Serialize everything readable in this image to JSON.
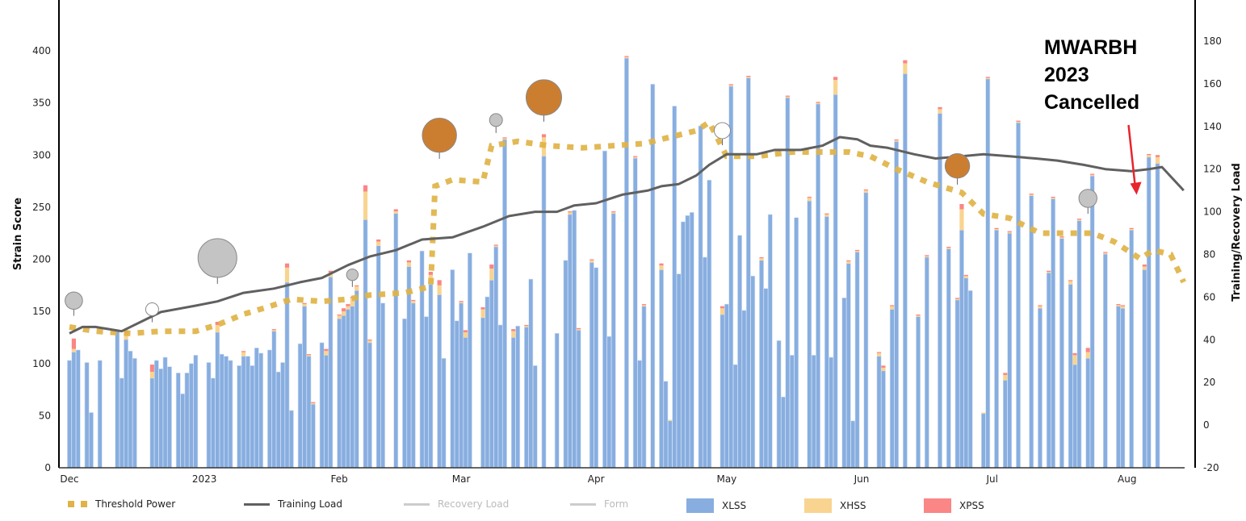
{
  "chart_data": {
    "type": "bar",
    "title": "",
    "x_origin_label": "Dec",
    "x_ticks": [
      {
        "label": "Dec",
        "day": 0
      },
      {
        "label": "2023",
        "day": 31
      },
      {
        "label": "Feb",
        "day": 62
      },
      {
        "label": "Mar",
        "day": 90
      },
      {
        "label": "Apr",
        "day": 121
      },
      {
        "label": "May",
        "day": 151
      },
      {
        "label": "Jun",
        "day": 182
      },
      {
        "label": "Jul",
        "day": 212
      },
      {
        "label": "Aug",
        "day": 243
      }
    ],
    "x_range_days": [
      0,
      256
    ],
    "left_axis": {
      "label": "Strain Score",
      "ylim": [
        0,
        440
      ],
      "ticks": [
        0,
        50,
        100,
        150,
        200,
        250,
        300,
        350,
        400
      ]
    },
    "right_axis": {
      "label": "Training/Recovery Load",
      "ylim": [
        -20,
        180
      ],
      "ticks": [
        -20,
        0,
        20,
        40,
        60,
        80,
        100,
        120,
        140,
        160,
        180
      ]
    },
    "colors": {
      "xlss": "#88aee0",
      "xhss": "#f9d490",
      "xpss": "#fa8686",
      "threshold": "#e0b347",
      "training": "#606060",
      "recovery": "#cccccc",
      "form": "#cccccc",
      "event_gray": "#c4c4c4",
      "event_orange": "#cc7e30",
      "arrow": "#e8242c"
    },
    "legend": [
      {
        "name": "Threshold Power",
        "visible": true
      },
      {
        "name": "Training Load",
        "visible": true
      },
      {
        "name": "Recovery Load",
        "visible": false
      },
      {
        "name": "Form",
        "visible": false
      },
      {
        "name": "XLSS",
        "visible": true
      },
      {
        "name": "XHSS",
        "visible": true
      },
      {
        "name": "XPSS",
        "visible": true
      }
    ],
    "bars_fields": [
      "day",
      "XLSS",
      "XHSS",
      "XPSS"
    ],
    "bars": [
      [
        0,
        103,
        0,
        0
      ],
      [
        1,
        111,
        3,
        10
      ],
      [
        2,
        113,
        0,
        0
      ],
      [
        4,
        101,
        0,
        0
      ],
      [
        5,
        53,
        0,
        0
      ],
      [
        7,
        103,
        0,
        0
      ],
      [
        11,
        131,
        0,
        0
      ],
      [
        12,
        86,
        0,
        0
      ],
      [
        13,
        123,
        6,
        3
      ],
      [
        14,
        112,
        0,
        0
      ],
      [
        15,
        105,
        0,
        0
      ],
      [
        19,
        86,
        6,
        7
      ],
      [
        20,
        103,
        0,
        0
      ],
      [
        21,
        95,
        0,
        0
      ],
      [
        22,
        106,
        0,
        0
      ],
      [
        23,
        97,
        0,
        0
      ],
      [
        25,
        91,
        0,
        0
      ],
      [
        26,
        71,
        0,
        0
      ],
      [
        27,
        91,
        0,
        0
      ],
      [
        28,
        100,
        0,
        0
      ],
      [
        29,
        108,
        0,
        0
      ],
      [
        32,
        101,
        0,
        0
      ],
      [
        33,
        86,
        0,
        0
      ],
      [
        34,
        130,
        7,
        3
      ],
      [
        35,
        109,
        0,
        0
      ],
      [
        36,
        107,
        0,
        0
      ],
      [
        37,
        103,
        0,
        0
      ],
      [
        39,
        98,
        0,
        0
      ],
      [
        40,
        107,
        4,
        1
      ],
      [
        41,
        107,
        0,
        0
      ],
      [
        42,
        98,
        0,
        0
      ],
      [
        43,
        115,
        0,
        0
      ],
      [
        44,
        110,
        0,
        0
      ],
      [
        46,
        113,
        0,
        0
      ],
      [
        47,
        131,
        1,
        1
      ],
      [
        48,
        92,
        0,
        0
      ],
      [
        49,
        101,
        0,
        0
      ],
      [
        50,
        178,
        14,
        4
      ],
      [
        51,
        55,
        0,
        0
      ],
      [
        53,
        119,
        0,
        0
      ],
      [
        54,
        155,
        2,
        1
      ],
      [
        55,
        107,
        1,
        1
      ],
      [
        56,
        61,
        1,
        1
      ],
      [
        58,
        120,
        0,
        0
      ],
      [
        59,
        108,
        4,
        2
      ],
      [
        60,
        183,
        4,
        2
      ],
      [
        62,
        143,
        3,
        1
      ],
      [
        63,
        146,
        4,
        3
      ],
      [
        64,
        152,
        3,
        2
      ],
      [
        65,
        155,
        8,
        1
      ],
      [
        66,
        170,
        4,
        1
      ],
      [
        68,
        238,
        27,
        6
      ],
      [
        69,
        120,
        2,
        1
      ],
      [
        71,
        213,
        4,
        2
      ],
      [
        72,
        158,
        0,
        0
      ],
      [
        75,
        244,
        2,
        2
      ],
      [
        77,
        143,
        0,
        0
      ],
      [
        78,
        193,
        4,
        2
      ],
      [
        79,
        158,
        2,
        1
      ],
      [
        81,
        208,
        0,
        0
      ],
      [
        82,
        145,
        0,
        0
      ],
      [
        83,
        176,
        9,
        3
      ],
      [
        85,
        166,
        9,
        5
      ],
      [
        86,
        105,
        0,
        0
      ],
      [
        88,
        190,
        0,
        0
      ],
      [
        89,
        141,
        0,
        0
      ],
      [
        90,
        158,
        1,
        1
      ],
      [
        91,
        125,
        5,
        2
      ],
      [
        92,
        206,
        0,
        0
      ],
      [
        95,
        144,
        8,
        2
      ],
      [
        96,
        164,
        0,
        0
      ],
      [
        97,
        180,
        11,
        4
      ],
      [
        98,
        212,
        1,
        1
      ],
      [
        99,
        137,
        0,
        0
      ],
      [
        100,
        315,
        1,
        1
      ],
      [
        102,
        125,
        6,
        2
      ],
      [
        103,
        136,
        0,
        0
      ],
      [
        105,
        135,
        1,
        1
      ],
      [
        106,
        181,
        0,
        0
      ],
      [
        107,
        98,
        0,
        0
      ],
      [
        109,
        299,
        18,
        3
      ],
      [
        112,
        129,
        0,
        0
      ],
      [
        114,
        199,
        0,
        0
      ],
      [
        115,
        243,
        2,
        1
      ],
      [
        116,
        247,
        0,
        0
      ],
      [
        117,
        132,
        1,
        1
      ],
      [
        120,
        197,
        2,
        1
      ],
      [
        121,
        192,
        0,
        0
      ],
      [
        123,
        304,
        0,
        0
      ],
      [
        124,
        126,
        0,
        0
      ],
      [
        125,
        244,
        1,
        1
      ],
      [
        128,
        393,
        1,
        1
      ],
      [
        130,
        297,
        1,
        1
      ],
      [
        131,
        103,
        0,
        0
      ],
      [
        132,
        155,
        1,
        1
      ],
      [
        134,
        368,
        0,
        0
      ],
      [
        136,
        190,
        4,
        2
      ],
      [
        137,
        83,
        0,
        0
      ],
      [
        138,
        45,
        1,
        0
      ],
      [
        139,
        347,
        0,
        0
      ],
      [
        140,
        186,
        0,
        0
      ],
      [
        141,
        236,
        0,
        0
      ],
      [
        142,
        242,
        0,
        0
      ],
      [
        143,
        245,
        0,
        0
      ],
      [
        145,
        328,
        0,
        0
      ],
      [
        146,
        202,
        0,
        0
      ],
      [
        147,
        276,
        0,
        0
      ],
      [
        150,
        147,
        6,
        2
      ],
      [
        151,
        157,
        0,
        0
      ],
      [
        152,
        366,
        1,
        1
      ],
      [
        153,
        99,
        0,
        0
      ],
      [
        154,
        223,
        0,
        0
      ],
      [
        155,
        151,
        0,
        0
      ],
      [
        156,
        374,
        1,
        1
      ],
      [
        157,
        184,
        0,
        0
      ],
      [
        159,
        199,
        2,
        1
      ],
      [
        160,
        172,
        0,
        0
      ],
      [
        161,
        243,
        0,
        0
      ],
      [
        163,
        122,
        0,
        0
      ],
      [
        164,
        68,
        0,
        0
      ],
      [
        165,
        355,
        1,
        1
      ],
      [
        166,
        108,
        0,
        0
      ],
      [
        167,
        240,
        0,
        0
      ],
      [
        170,
        256,
        3,
        1
      ],
      [
        171,
        108,
        0,
        0
      ],
      [
        172,
        349,
        1,
        1
      ],
      [
        174,
        241,
        2,
        1
      ],
      [
        175,
        106,
        0,
        0
      ],
      [
        176,
        358,
        14,
        3
      ],
      [
        178,
        163,
        0,
        0
      ],
      [
        179,
        196,
        2,
        1
      ],
      [
        180,
        45,
        0,
        0
      ],
      [
        181,
        207,
        1,
        1
      ],
      [
        183,
        264,
        2,
        1
      ],
      [
        186,
        107,
        3,
        1
      ],
      [
        187,
        93,
        3,
        2
      ],
      [
        189,
        152,
        3,
        1
      ],
      [
        190,
        313,
        1,
        1
      ],
      [
        192,
        378,
        10,
        3
      ],
      [
        195,
        145,
        1,
        1
      ],
      [
        197,
        202,
        1,
        1
      ],
      [
        200,
        340,
        4,
        2
      ],
      [
        202,
        210,
        1,
        1
      ],
      [
        204,
        161,
        1,
        1
      ],
      [
        205,
        228,
        20,
        5
      ],
      [
        206,
        182,
        2,
        1
      ],
      [
        207,
        170,
        0,
        0
      ],
      [
        210,
        52,
        1,
        0
      ],
      [
        211,
        373,
        1,
        1
      ],
      [
        213,
        228,
        1,
        1
      ],
      [
        215,
        84,
        5,
        2
      ],
      [
        216,
        225,
        1,
        1
      ],
      [
        218,
        331,
        1,
        1
      ],
      [
        221,
        261,
        1,
        1
      ],
      [
        223,
        153,
        2,
        1
      ],
      [
        225,
        187,
        1,
        1
      ],
      [
        226,
        258,
        1,
        1
      ],
      [
        228,
        220,
        1,
        1
      ],
      [
        230,
        176,
        3,
        1
      ],
      [
        231,
        99,
        9,
        2
      ],
      [
        232,
        237,
        1,
        1
      ],
      [
        234,
        105,
        6,
        4
      ],
      [
        235,
        280,
        1,
        1
      ],
      [
        238,
        205,
        1,
        1
      ],
      [
        241,
        155,
        1,
        1
      ],
      [
        242,
        153,
        2,
        1
      ],
      [
        244,
        228,
        1,
        1
      ],
      [
        247,
        190,
        3,
        2
      ],
      [
        248,
        298,
        2,
        1
      ],
      [
        250,
        292,
        6,
        2
      ]
    ],
    "training_load": [
      [
        0,
        43
      ],
      [
        3,
        46
      ],
      [
        6,
        46
      ],
      [
        12,
        44
      ],
      [
        17,
        49
      ],
      [
        21,
        53
      ],
      [
        29,
        56
      ],
      [
        34,
        58
      ],
      [
        40,
        62
      ],
      [
        47,
        64
      ],
      [
        53,
        67
      ],
      [
        58,
        69
      ],
      [
        64,
        75
      ],
      [
        69,
        79
      ],
      [
        75,
        82
      ],
      [
        81,
        87
      ],
      [
        88,
        88
      ],
      [
        95,
        93
      ],
      [
        101,
        98
      ],
      [
        107,
        100
      ],
      [
        112,
        100
      ],
      [
        116,
        103
      ],
      [
        121,
        104
      ],
      [
        127,
        108
      ],
      [
        133,
        110
      ],
      [
        136,
        112
      ],
      [
        140,
        113
      ],
      [
        144,
        117
      ],
      [
        147,
        122
      ],
      [
        151,
        127
      ],
      [
        155,
        127
      ],
      [
        158,
        127
      ],
      [
        162,
        129
      ],
      [
        168,
        129
      ],
      [
        173,
        131
      ],
      [
        177,
        135
      ],
      [
        181,
        134
      ],
      [
        184,
        131
      ],
      [
        188,
        130
      ],
      [
        194,
        127
      ],
      [
        199,
        125
      ],
      [
        205,
        126
      ],
      [
        210,
        127
      ],
      [
        216,
        126
      ],
      [
        222,
        125
      ],
      [
        227,
        124
      ],
      [
        233,
        122
      ],
      [
        238,
        120
      ],
      [
        244,
        119
      ],
      [
        248,
        120
      ],
      [
        251,
        121
      ],
      [
        256,
        110
      ]
    ],
    "threshold_power": [
      [
        0,
        46
      ],
      [
        6,
        44
      ],
      [
        14,
        43
      ],
      [
        21,
        44
      ],
      [
        29,
        44
      ],
      [
        34,
        47
      ],
      [
        40,
        52
      ],
      [
        45,
        55
      ],
      [
        51,
        59
      ],
      [
        58,
        58
      ],
      [
        64,
        59
      ],
      [
        69,
        61
      ],
      [
        77,
        62
      ],
      [
        83,
        65
      ],
      [
        84,
        112
      ],
      [
        88,
        115
      ],
      [
        95,
        114
      ],
      [
        97,
        131
      ],
      [
        103,
        133
      ],
      [
        110,
        131
      ],
      [
        118,
        130
      ],
      [
        125,
        131
      ],
      [
        132,
        132
      ],
      [
        138,
        135
      ],
      [
        144,
        138
      ],
      [
        147,
        142
      ],
      [
        151,
        126
      ],
      [
        158,
        126
      ],
      [
        166,
        128
      ],
      [
        171,
        128
      ],
      [
        179,
        128
      ],
      [
        184,
        126
      ],
      [
        190,
        120
      ],
      [
        197,
        114
      ],
      [
        205,
        109
      ],
      [
        210,
        99
      ],
      [
        216,
        97
      ],
      [
        223,
        90
      ],
      [
        229,
        90
      ],
      [
        235,
        90
      ],
      [
        240,
        86
      ],
      [
        246,
        78
      ],
      [
        249,
        82
      ],
      [
        253,
        80
      ],
      [
        256,
        67
      ]
    ],
    "events": [
      {
        "day": 1,
        "value": 52,
        "size": 2.7,
        "style": "gray"
      },
      {
        "day": 19,
        "value": 49,
        "size": 2,
        "style": "white"
      },
      {
        "day": 34,
        "value": 67,
        "size": 6,
        "style": "gray"
      },
      {
        "day": 65,
        "value": 65.5,
        "size": 1.8,
        "style": "gray"
      },
      {
        "day": 85,
        "value": 125.6,
        "size": 5.3,
        "style": "orange"
      },
      {
        "day": 98,
        "value": 137.7,
        "size": 2,
        "style": "gray"
      },
      {
        "day": 109,
        "value": 143,
        "size": 5.5,
        "style": "orange"
      },
      {
        "day": 150,
        "value": 132,
        "size": 2.5,
        "style": "white"
      },
      {
        "day": 204,
        "value": 113.5,
        "size": 3.8,
        "style": "orange"
      },
      {
        "day": 234,
        "value": 99.8,
        "size": 2.8,
        "style": "gray"
      }
    ],
    "annotation": {
      "lines": [
        "MWARBH",
        "2023",
        "Cancelled"
      ],
      "arrow_target_day": 245,
      "arrow_target_value": 108
    }
  }
}
